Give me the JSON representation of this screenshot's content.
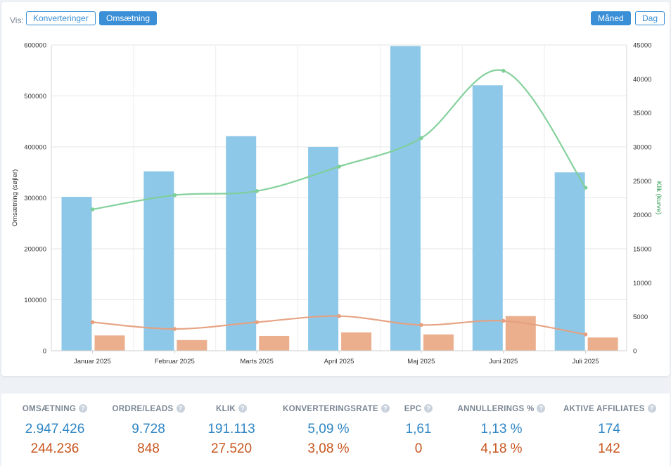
{
  "toolbar": {
    "vis_label": "Vis:",
    "view_buttons": [
      "Konverteringer",
      "Omsætning"
    ],
    "active_view": "Omsætning",
    "period_buttons": [
      "Måned",
      "Dag"
    ],
    "active_period": "Måned"
  },
  "colors": {
    "bar_revenue": "#8ec8e8",
    "bar_compare": "#ebaf8e",
    "line_clicks": "#7ecf98",
    "line_compare": "#e6a07f",
    "accent": "#3a8fd6",
    "ylabel_right": "#2e9a4f"
  },
  "chart_data": {
    "type": "bar",
    "categories": [
      "Januar 2025",
      "Februar 2025",
      "Marts 2025",
      "April 2025",
      "Maj 2025",
      "Juni 2025",
      "Juli 2025"
    ],
    "ylabel": "Omsætning (søjler)",
    "ylabel_right": "Klik (kurve)",
    "ylim": [
      0,
      600000
    ],
    "ylim_right": [
      0,
      45000
    ],
    "y_ticks": [
      0,
      100000,
      200000,
      300000,
      400000,
      500000,
      600000
    ],
    "y_ticks_right": [
      0,
      5000,
      10000,
      15000,
      20000,
      25000,
      30000,
      35000,
      40000,
      45000
    ],
    "grid": true,
    "series": [
      {
        "kind": "bar",
        "axis": "left",
        "values": [
          302000,
          352000,
          421000,
          400000,
          598000,
          521000,
          350000
        ]
      },
      {
        "kind": "bar",
        "axis": "left",
        "values": [
          30000,
          21000,
          29000,
          36000,
          32000,
          68000,
          26000
        ]
      },
      {
        "kind": "line",
        "axis": "right",
        "values": [
          20800,
          22900,
          23500,
          27100,
          31300,
          41200,
          24000
        ]
      },
      {
        "kind": "line",
        "axis": "right",
        "values": [
          4200,
          3200,
          4200,
          5100,
          3800,
          4400,
          2400
        ]
      }
    ]
  },
  "stats": [
    {
      "label": "OMSÆTNING",
      "value": "2.947.426",
      "compare": "244.236"
    },
    {
      "label": "ORDRE/LEADS",
      "value": "9.728",
      "compare": "848"
    },
    {
      "label": "KLIK",
      "value": "191.113",
      "compare": "27.520"
    },
    {
      "label": "KONVERTERINGSRATE",
      "value": "5,09 %",
      "compare": "3,08 %"
    },
    {
      "label": "EPC",
      "value": "1,61",
      "compare": "0"
    },
    {
      "label": "ANNULLERINGS %",
      "value": "1,13 %",
      "compare": "4,18 %"
    },
    {
      "label": "AKTIVE AFFILIATES",
      "value": "174",
      "compare": "142"
    }
  ],
  "help_glyph": "?"
}
